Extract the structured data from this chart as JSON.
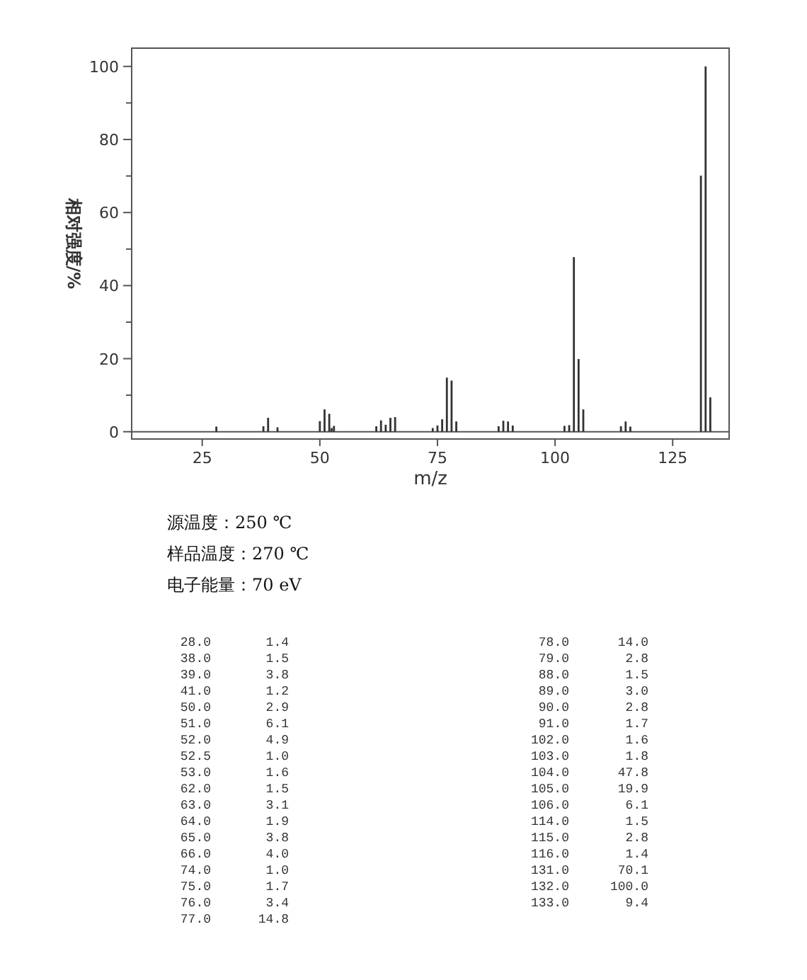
{
  "chart_data": [
    {
      "type": "bar",
      "xlabel": "m/z",
      "ylabel": "相对强度/%",
      "x": [
        28,
        38,
        39,
        41,
        50,
        51,
        52,
        52.5,
        53,
        62,
        63,
        64,
        65,
        66,
        74,
        75,
        76,
        77,
        78,
        79,
        88,
        89,
        90,
        91,
        102,
        103,
        104,
        105,
        106,
        114,
        115,
        116,
        131,
        132,
        133
      ],
      "values": [
        1.4,
        1.5,
        3.8,
        1.2,
        2.9,
        6.1,
        4.9,
        1.0,
        1.6,
        1.5,
        3.1,
        1.9,
        3.8,
        4.0,
        1.0,
        1.7,
        3.4,
        14.8,
        14.0,
        2.8,
        1.5,
        3.0,
        2.8,
        1.7,
        1.6,
        1.8,
        47.8,
        19.9,
        6.1,
        1.5,
        2.8,
        1.4,
        70.1,
        100.0,
        9.4
      ],
      "color": "#333333",
      "xlim": [
        10,
        137
      ],
      "xticks": [
        25,
        50,
        75,
        100,
        125
      ],
      "ylim": [
        -2,
        105
      ],
      "yticks": [
        0,
        {
          "value": 10,
          "label": null
        },
        20,
        {
          "value": 30,
          "label": null
        },
        40,
        {
          "value": 50,
          "label": null
        },
        60,
        {
          "value": 70,
          "label": null
        },
        80,
        {
          "value": 90,
          "label": null
        },
        100
      ],
      "ref_lines": [
        {
          "axis": "y",
          "value": 0,
          "color": "#555555"
        }
      ],
      "annotations": [
        "源温度：250 ℃",
        "样品温度：270 ℃",
        "电子能量：70 eV"
      ]
    },
    {
      "type": "other",
      "categories": [
        "28.0",
        "38.0",
        "39.0",
        "41.0",
        "50.0",
        "51.0",
        "52.0",
        "52.5",
        "53.0",
        "62.0",
        "63.0",
        "64.0",
        "65.0",
        "66.0",
        "74.0",
        "75.0",
        "76.0",
        "77.0",
        "78.0",
        "79.0",
        "88.0",
        "89.0",
        "90.0",
        "91.0",
        "102.0",
        "103.0",
        "104.0",
        "105.0",
        "106.0",
        "114.0",
        "115.0",
        "116.0",
        "131.0",
        "132.0",
        "133.0"
      ],
      "values": [
        1.4,
        1.5,
        3.8,
        1.2,
        2.9,
        6.1,
        4.9,
        1.0,
        1.6,
        1.5,
        3.1,
        1.9,
        3.8,
        4.0,
        1.0,
        1.7,
        3.4,
        14.8,
        14.0,
        2.8,
        1.5,
        3.0,
        2.8,
        1.7,
        1.6,
        1.8,
        47.8,
        19.9,
        6.1,
        1.5,
        2.8,
        1.4,
        70.1,
        100.0,
        9.4
      ],
      "value_labels": [
        "1.4",
        "1.5",
        "3.8",
        "1.2",
        "2.9",
        "6.1",
        "4.9",
        "1.0",
        "1.6",
        "1.5",
        "3.1",
        "1.9",
        "3.8",
        "4.0",
        "1.0",
        "1.7",
        "3.4",
        "14.8",
        "14.0",
        "2.8",
        "1.5",
        "3.0",
        "2.8",
        "1.7",
        "1.6",
        "1.8",
        "47.8",
        "19.9",
        "6.1",
        "1.5",
        "2.8",
        "1.4",
        "70.1",
        "100.0",
        "9.4"
      ]
    }
  ]
}
